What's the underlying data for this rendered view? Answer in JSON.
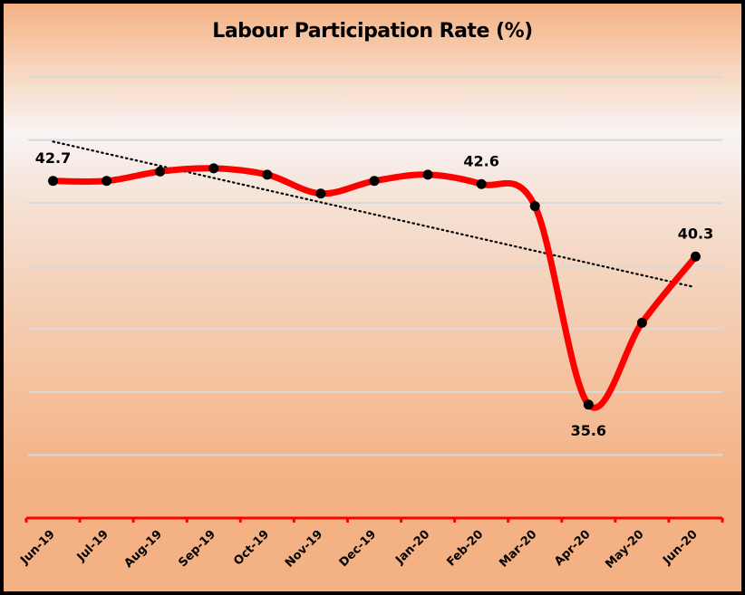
{
  "chart_data": {
    "type": "line",
    "title": "Labour Participation Rate (%)",
    "xlabel": "",
    "ylabel": "",
    "categories": [
      "Jun-19",
      "Jul-19",
      "Aug-19",
      "Sep-19",
      "Oct-19",
      "Nov-19",
      "Dec-19",
      "Jan-20",
      "Feb-20",
      "Mar-20",
      "Apr-20",
      "May-20",
      "Jun-20"
    ],
    "series": [
      {
        "name": "Labour Participation Rate",
        "values": [
          42.7,
          42.7,
          43.0,
          43.1,
          42.9,
          42.3,
          42.7,
          42.9,
          42.6,
          41.9,
          35.6,
          38.2,
          40.3
        ],
        "color": "#ff0000",
        "marker_color": "#000000",
        "smooth": true
      }
    ],
    "data_labels": [
      {
        "category": "Jun-19",
        "text": "42.7"
      },
      {
        "category": "Feb-20",
        "text": "42.6"
      },
      {
        "category": "Apr-20",
        "text": "35.6"
      },
      {
        "category": "Jun-20",
        "text": "40.3"
      }
    ],
    "trendline": {
      "type": "linear",
      "style": "dotted",
      "color": "#000000",
      "start": 43.95,
      "end": 39.35
    },
    "ylim": [
      32,
      46
    ],
    "y_gridlines": [
      34,
      36,
      38,
      40,
      42,
      44,
      46
    ],
    "y_axis_visible": false,
    "grid": true,
    "legend": "none",
    "axis_color": "#ff0000"
  }
}
